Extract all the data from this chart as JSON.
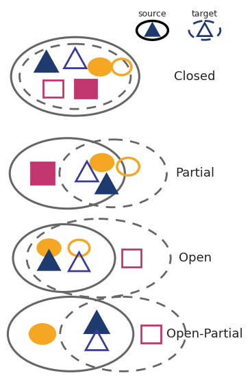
{
  "bg_color": "#ffffff",
  "source_color": "#1e3a6e",
  "hollow_tri_color": "#3a3a9a",
  "orange_color": "#f5a623",
  "pink_color": "#c2366e",
  "gray_color": "#666666",
  "label_color": "#222222",
  "labels": [
    "Closed",
    "Partial",
    "Open",
    "Open-Partial"
  ],
  "legend_src_label": "source",
  "legend_tgt_label": "target"
}
